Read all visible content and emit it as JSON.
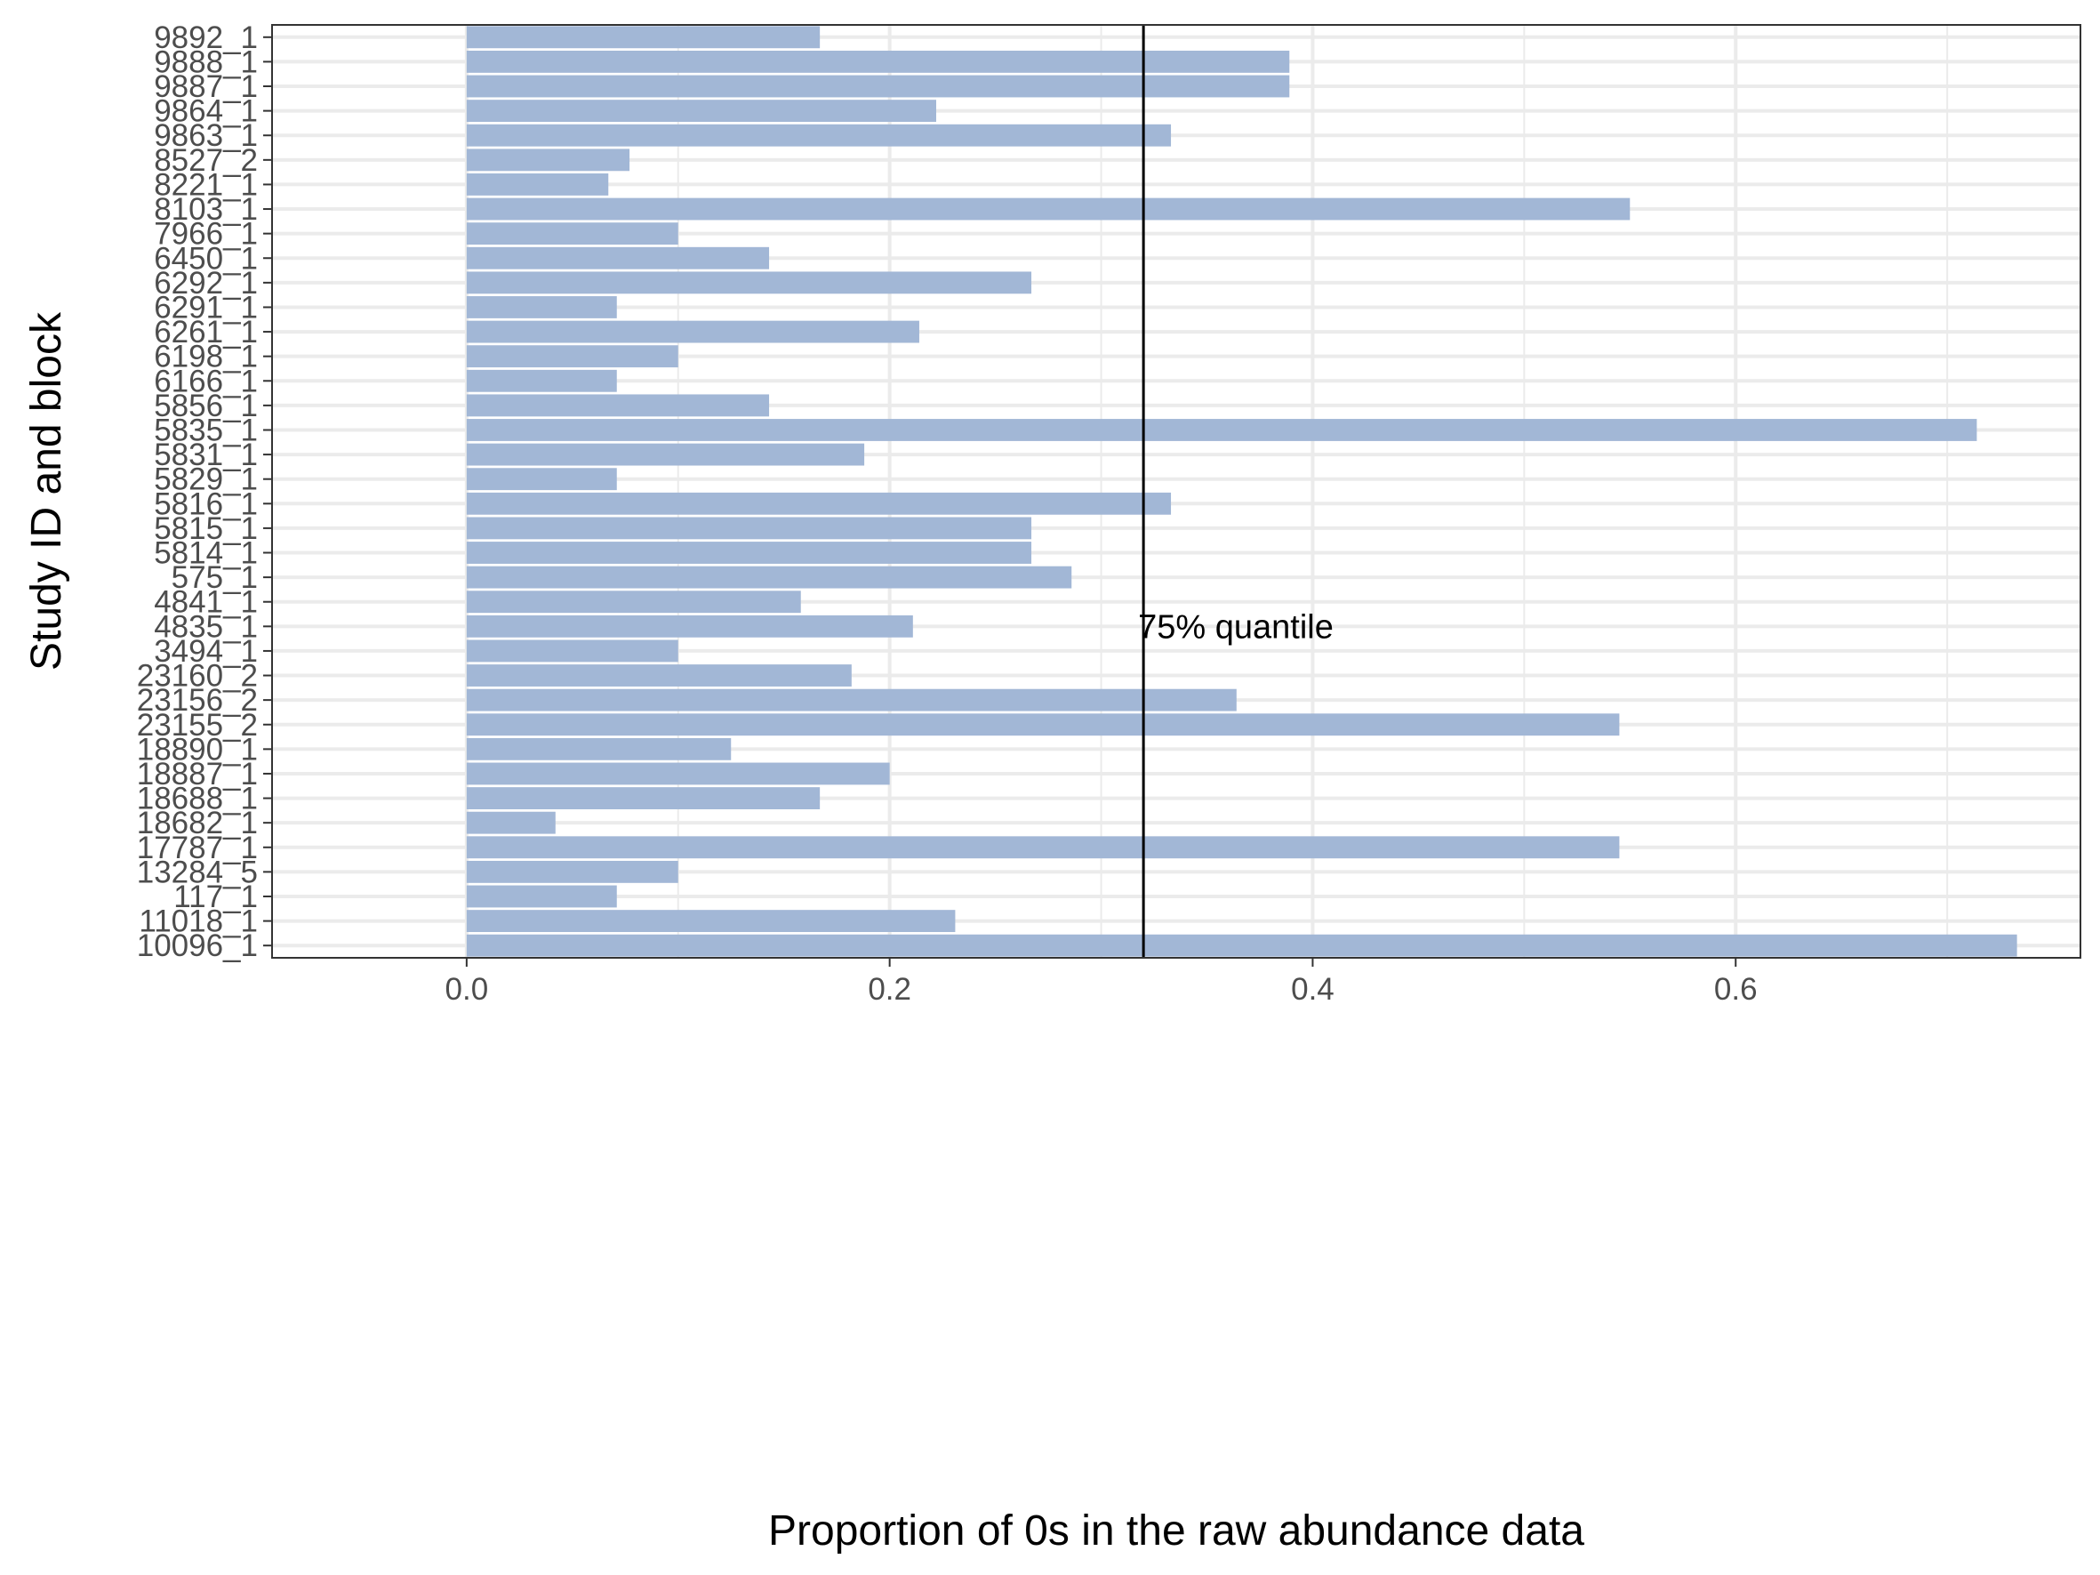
{
  "chart_data": {
    "type": "bar",
    "orientation": "horizontal",
    "xlabel": "Proportion of 0s in the raw abundance data",
    "ylabel": "Study ID and block",
    "xlim": [
      -0.092,
      0.763
    ],
    "xticks": [
      0.0,
      0.2,
      0.4,
      0.6
    ],
    "xtick_labels": [
      "0.0",
      "0.2",
      "0.4",
      "0.6"
    ],
    "grid": true,
    "bar_color": "#a2b7d6",
    "categories": [
      "9892_1",
      "9888_1",
      "9887_1",
      "9864_1",
      "9863_1",
      "8527_2",
      "8221_1",
      "8103_1",
      "7966_1",
      "6450_1",
      "6292_1",
      "6291_1",
      "6261_1",
      "6198_1",
      "6166_1",
      "5856_1",
      "5835_1",
      "5831_1",
      "5829_1",
      "5816_1",
      "5815_1",
      "5814_1",
      "575_1",
      "4841_1",
      "4835_1",
      "3494_1",
      "23160_2",
      "23156_2",
      "23155_2",
      "18890_1",
      "18887_1",
      "18688_1",
      "18682_1",
      "17787_1",
      "13284_5",
      "117_1",
      "11018_1",
      "10096_1"
    ],
    "values": [
      0.167,
      0.389,
      0.389,
      0.222,
      0.333,
      0.077,
      0.067,
      0.55,
      0.1,
      0.143,
      0.267,
      0.071,
      0.214,
      0.1,
      0.071,
      0.143,
      0.714,
      0.188,
      0.071,
      0.333,
      0.267,
      0.267,
      0.286,
      0.158,
      0.211,
      0.1,
      0.182,
      0.364,
      0.545,
      0.125,
      0.2,
      0.167,
      0.042,
      0.545,
      0.1,
      0.071,
      0.231,
      0.733
    ],
    "reference_line": {
      "x": 0.32,
      "label": "75% quantile",
      "label_y_category": "4835_1"
    }
  }
}
